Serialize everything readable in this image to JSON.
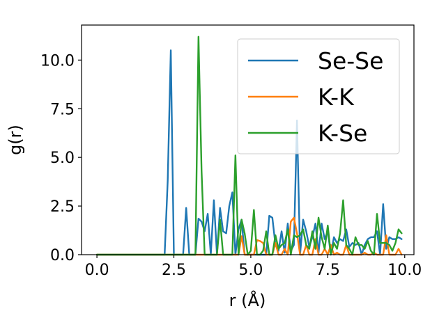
{
  "chart_data": {
    "type": "line",
    "xlabel": "r (Å)",
    "ylabel": "g(r)",
    "xlim": [
      -0.5,
      10.3
    ],
    "ylim": [
      0,
      11.8
    ],
    "xticks": [
      0.0,
      2.5,
      5.0,
      7.5,
      10.0
    ],
    "xtick_labels": [
      "0.0",
      "2.5",
      "5.0",
      "7.5",
      "10.0"
    ],
    "yticks": [
      0.0,
      2.5,
      5.0,
      7.5,
      10.0
    ],
    "ytick_labels": [
      "0.0",
      "2.5",
      "5.0",
      "7.5",
      "10.0"
    ],
    "grid": false,
    "legend_position": "top-right",
    "x": [
      0.0,
      0.1,
      0.2,
      0.3,
      0.4,
      0.5,
      0.6,
      0.7,
      0.8,
      0.9,
      1.0,
      1.1,
      1.2,
      1.3,
      1.4,
      1.5,
      1.6,
      1.7,
      1.8,
      1.9,
      2.0,
      2.1,
      2.2,
      2.3,
      2.4,
      2.5,
      2.6,
      2.7,
      2.8,
      2.9,
      3.0,
      3.1,
      3.2,
      3.3,
      3.4,
      3.5,
      3.6,
      3.7,
      3.8,
      3.9,
      4.0,
      4.1,
      4.2,
      4.3,
      4.4,
      4.5,
      4.6,
      4.7,
      4.8,
      4.9,
      5.0,
      5.1,
      5.2,
      5.3,
      5.4,
      5.5,
      5.6,
      5.7,
      5.8,
      5.9,
      6.0,
      6.1,
      6.2,
      6.3,
      6.4,
      6.5,
      6.6,
      6.7,
      6.8,
      6.9,
      7.0,
      7.1,
      7.2,
      7.3,
      7.4,
      7.5,
      7.6,
      7.7,
      7.8,
      7.9,
      8.0,
      8.1,
      8.2,
      8.3,
      8.4,
      8.5,
      8.6,
      8.7,
      8.8,
      8.9,
      9.0,
      9.1,
      9.2,
      9.3,
      9.4,
      9.5,
      9.6,
      9.7,
      9.8,
      9.9
    ],
    "series": [
      {
        "name": "Se-Se",
        "color": "#1f77b4",
        "values": [
          0,
          0,
          0,
          0,
          0,
          0,
          0,
          0,
          0,
          0,
          0,
          0,
          0,
          0,
          0,
          0,
          0,
          0,
          0,
          0,
          0,
          0,
          0,
          3.8,
          10.5,
          0,
          0,
          0,
          0,
          2.4,
          0,
          0,
          0,
          1.85,
          1.7,
          1.2,
          2.1,
          0,
          2.8,
          0,
          2.4,
          1.2,
          1.1,
          2.5,
          3.2,
          0,
          1.3,
          1.8,
          0,
          0,
          0,
          0,
          0,
          0,
          0,
          0,
          2.0,
          1.9,
          0.5,
          0.2,
          1.2,
          0.1,
          1.6,
          0.2,
          0.5,
          6.9,
          0,
          1.8,
          1.2,
          0.4,
          0.9,
          1.6,
          0.1,
          1.6,
          0.8,
          1.2,
          0,
          0.9,
          0.6,
          0.8,
          0.7,
          1.3,
          0.4,
          0.6,
          0.5,
          0.6,
          0,
          0.5,
          0.8,
          0.9,
          0.9,
          1.2,
          0,
          2.6,
          0.3,
          0.9,
          0.8,
          0.8,
          0.9,
          0.8
        ]
      },
      {
        "name": "K-K",
        "color": "#ff7f0e",
        "values": [
          0,
          0,
          0,
          0,
          0,
          0,
          0,
          0,
          0,
          0,
          0,
          0,
          0,
          0,
          0,
          0,
          0,
          0,
          0,
          0,
          0,
          0,
          0,
          0,
          0,
          0,
          0,
          0,
          0,
          0,
          0,
          0,
          0,
          0,
          0,
          0,
          0,
          0,
          0,
          0,
          0,
          0,
          0,
          0,
          0,
          0,
          0,
          0.95,
          0,
          0,
          0,
          0,
          0.75,
          0.7,
          0.6,
          0,
          0,
          0,
          0.6,
          0,
          0,
          0.3,
          0,
          1.7,
          1.9,
          1.1,
          0,
          0,
          0.5,
          0,
          0,
          0.8,
          0,
          0,
          0.3,
          0,
          0.5,
          0,
          0.1,
          0,
          0,
          0.5,
          0,
          0,
          0,
          0,
          0,
          0.1,
          0,
          0,
          0.1,
          0,
          0,
          0,
          1.0,
          0,
          0,
          0,
          0.3,
          0
        ]
      },
      {
        "name": "K-Se",
        "color": "#2ca02c",
        "values": [
          0,
          0,
          0,
          0,
          0,
          0,
          0,
          0,
          0,
          0,
          0,
          0,
          0,
          0,
          0,
          0,
          0,
          0,
          0,
          0,
          0,
          0,
          0,
          0,
          0,
          0,
          0,
          0,
          0,
          0,
          0,
          0,
          0,
          11.2,
          4.3,
          0,
          0,
          0,
          0,
          0,
          1.8,
          0,
          0,
          0,
          0,
          5.1,
          0,
          1.8,
          1.1,
          0,
          0.2,
          2.3,
          0,
          0,
          0.2,
          1.2,
          0,
          0,
          1.0,
          0.3,
          0.5,
          0.6,
          1.3,
          0,
          1.0,
          0.9,
          1.0,
          1.3,
          0.5,
          0.3,
          1.2,
          0.3,
          1.9,
          0.9,
          0.3,
          1.5,
          0,
          0.6,
          0.3,
          1.1,
          2.8,
          0.5,
          0.3,
          0,
          0.9,
          0.5,
          0.5,
          0.3,
          0.7,
          0.2,
          0,
          2.1,
          0.6,
          0.6,
          0.6,
          0.5,
          0.2,
          0.6,
          1.3,
          1.1
        ]
      }
    ]
  }
}
